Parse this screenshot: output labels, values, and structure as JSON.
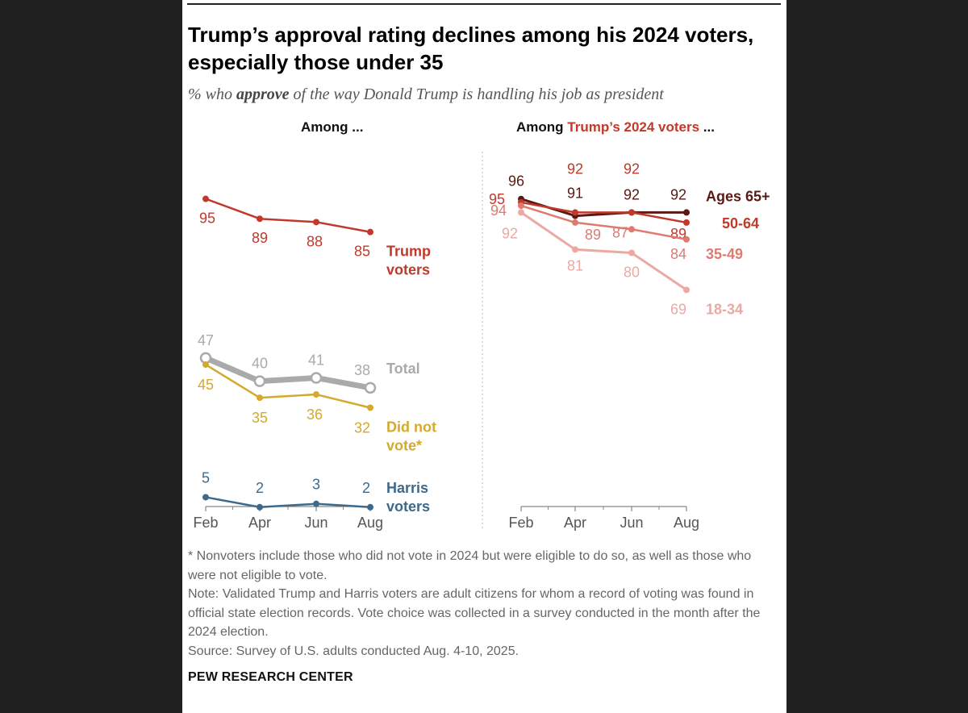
{
  "title": "Trump’s approval rating declines among his 2024 voters, especially those under 35",
  "subtitle_pre": "% who ",
  "subtitle_bold": "approve",
  "subtitle_post": " of the way Donald Trump is handling his job as president",
  "left_panel": {
    "heading": "Among ..."
  },
  "right_panel": {
    "heading_pre": "Among ",
    "heading_highlight": "Trump’s 2024 voters",
    "heading_post": " ..."
  },
  "colors": {
    "trump_voters": "#c0392b",
    "total": "#aaaaaa",
    "did_not_vote": "#d4aa2d",
    "harris_voters": "#3d6a8c",
    "ages_65_plus": "#5a1a14",
    "ages_50_64": "#c0392b",
    "ages_35_49": "#df7a70",
    "ages_18_34": "#eba9a2",
    "highlight_red": "#c0392b"
  },
  "chart_data": [
    {
      "type": "line",
      "x": [
        "Feb",
        "Apr",
        "Jun",
        "Aug"
      ],
      "ylim": [
        0,
        100
      ],
      "series": [
        {
          "name": "Trump voters",
          "values": [
            95,
            89,
            88,
            85
          ]
        },
        {
          "name": "Total",
          "values": [
            47,
            40,
            41,
            38
          ]
        },
        {
          "name": "Did not vote*",
          "values": [
            45,
            35,
            36,
            32
          ]
        },
        {
          "name": "Harris voters",
          "values": [
            5,
            2,
            3,
            2
          ]
        }
      ]
    },
    {
      "type": "line",
      "x": [
        "Feb",
        "Apr",
        "Jun",
        "Aug"
      ],
      "ylim": [
        60,
        100
      ],
      "series": [
        {
          "name": "Ages 65+",
          "values": [
            96,
            91,
            92,
            92
          ]
        },
        {
          "name": "50-64",
          "values": [
            95,
            92,
            92,
            89
          ]
        },
        {
          "name": "35-49",
          "values": [
            94,
            89,
            87,
            84
          ]
        },
        {
          "name": "18-34",
          "values": [
            92,
            81,
            80,
            69
          ]
        }
      ]
    }
  ],
  "footnotes": [
    "* Nonvoters include those who did not vote in 2024 but were eligible to do so, as well as those who were not eligible to vote.",
    "Note: Validated Trump and Harris voters are adult citizens for whom a record of voting was found in official state election records. Vote choice was collected in a survey conducted in the month after the 2024 election.",
    "Source: Survey of U.S. adults conducted Aug. 4-10, 2025."
  ],
  "source_org": "PEW RESEARCH CENTER"
}
